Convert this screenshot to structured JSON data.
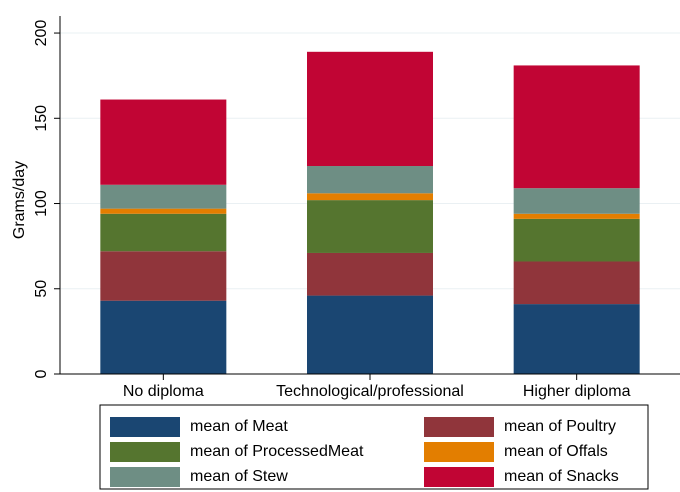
{
  "chart_data": {
    "type": "stacked-bar",
    "y_label": "Grams/day",
    "categories": [
      "No diploma",
      "Technological/professional",
      "Higher diploma"
    ],
    "series": [
      {
        "name": "mean of Meat",
        "color": "#1a4672",
        "values": [
          43,
          46,
          41
        ]
      },
      {
        "name": "mean of Poultry",
        "color": "#90353b",
        "values": [
          29,
          25,
          25
        ]
      },
      {
        "name": "mean of ProcessedMeat",
        "color": "#55752f",
        "values": [
          22,
          31,
          25
        ]
      },
      {
        "name": "mean of Offals",
        "color": "#e37e00",
        "values": [
          3,
          4,
          3
        ]
      },
      {
        "name": "mean of Stew",
        "color": "#6e8e84",
        "values": [
          14,
          16,
          15
        ]
      },
      {
        "name": "mean of Snacks",
        "color": "#c10534",
        "values": [
          50,
          67,
          72
        ]
      }
    ],
    "ylim": [
      0,
      210
    ],
    "yticks": [
      0,
      50,
      100,
      150,
      200
    ],
    "grid": true
  }
}
